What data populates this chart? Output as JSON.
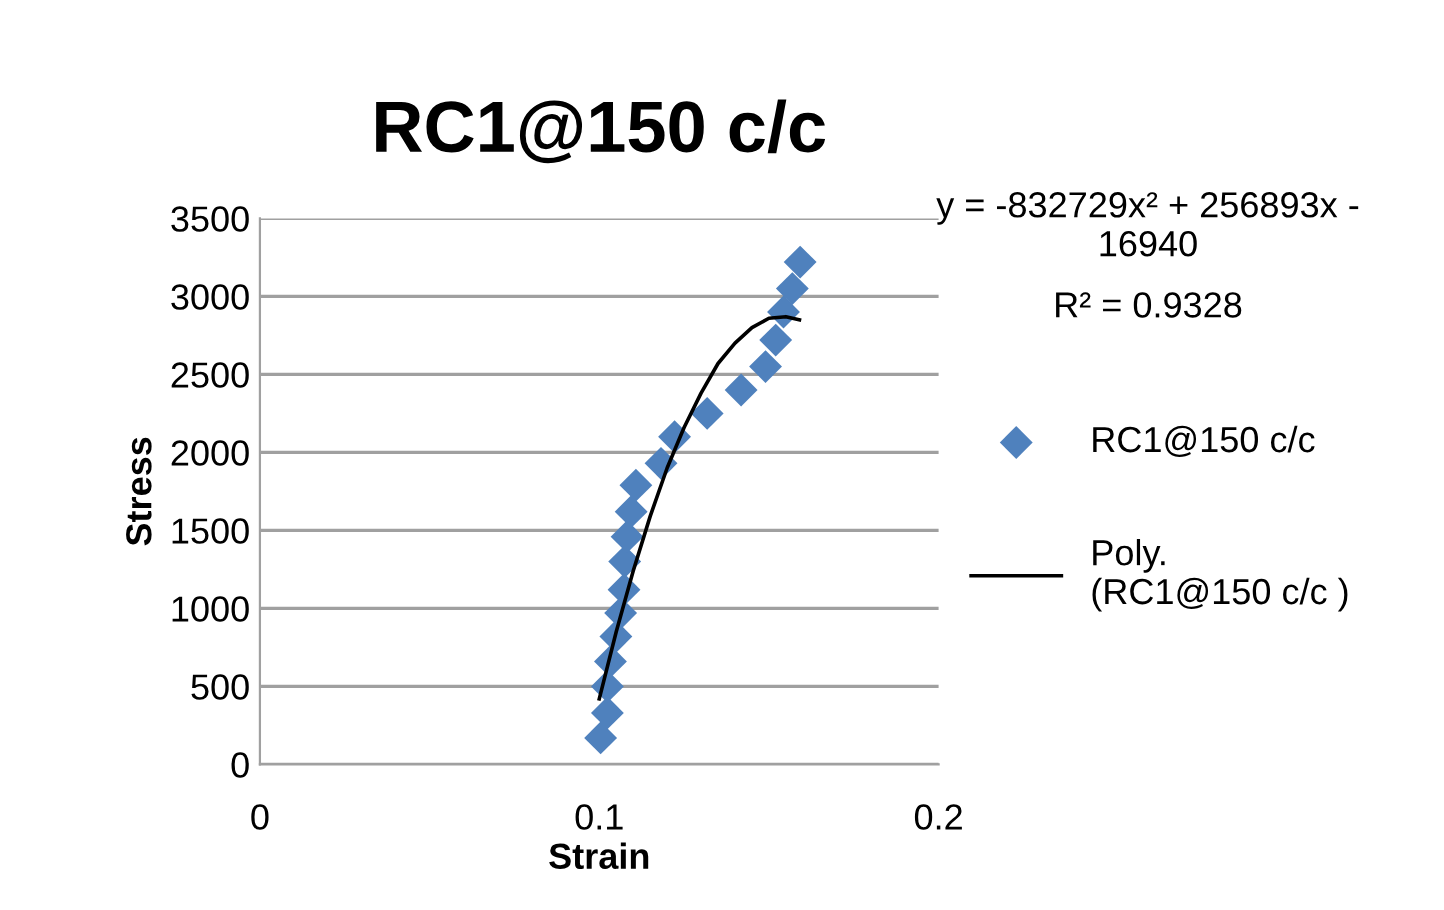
{
  "chart_data": {
    "type": "scatter",
    "title": "RC1@150 c/c",
    "xlabel": "Strain",
    "ylabel": "Stress",
    "xlim": [
      0,
      0.2
    ],
    "xticks": [
      0,
      0.1,
      0.2
    ],
    "ylim": [
      0,
      3500
    ],
    "yticks": [
      0,
      500,
      1000,
      1500,
      2000,
      2500,
      3000,
      3500
    ],
    "grid": "y",
    "legend": "right",
    "annotations": [
      "y = -832729x² + 256893x -\n16940",
      "R² = 0.9328"
    ],
    "series": [
      {
        "name": "RC1@150 c/c",
        "marker": "diamond",
        "color": "#4f81bd",
        "x": [
          0.1004,
          0.1024,
          0.1024,
          0.1033,
          0.1049,
          0.1063,
          0.1073,
          0.1075,
          0.1082,
          0.1094,
          0.1108,
          0.1182,
          0.1222,
          0.1318,
          0.1418,
          0.149,
          0.152,
          0.1543,
          0.1569,
          0.1592
        ],
        "values": [
          170,
          330,
          500,
          660,
          820,
          970,
          1120,
          1300,
          1460,
          1620,
          1790,
          1930,
          2100,
          2250,
          2400,
          2550,
          2720,
          2900,
          3050,
          3220
        ]
      },
      {
        "name": "Poly.\n(RC1@150 c/c )",
        "type": "line",
        "marker": "none",
        "color": "#000000",
        "x": [
          0.1,
          0.105,
          0.11,
          0.115,
          0.12,
          0.125,
          0.13,
          0.135,
          0.14,
          0.145,
          0.15,
          0.155,
          0.159
        ],
        "values": [
          420,
          850,
          1240,
          1590,
          1900,
          2160,
          2380,
          2570,
          2700,
          2800,
          2860,
          2870,
          2850
        ]
      }
    ]
  }
}
